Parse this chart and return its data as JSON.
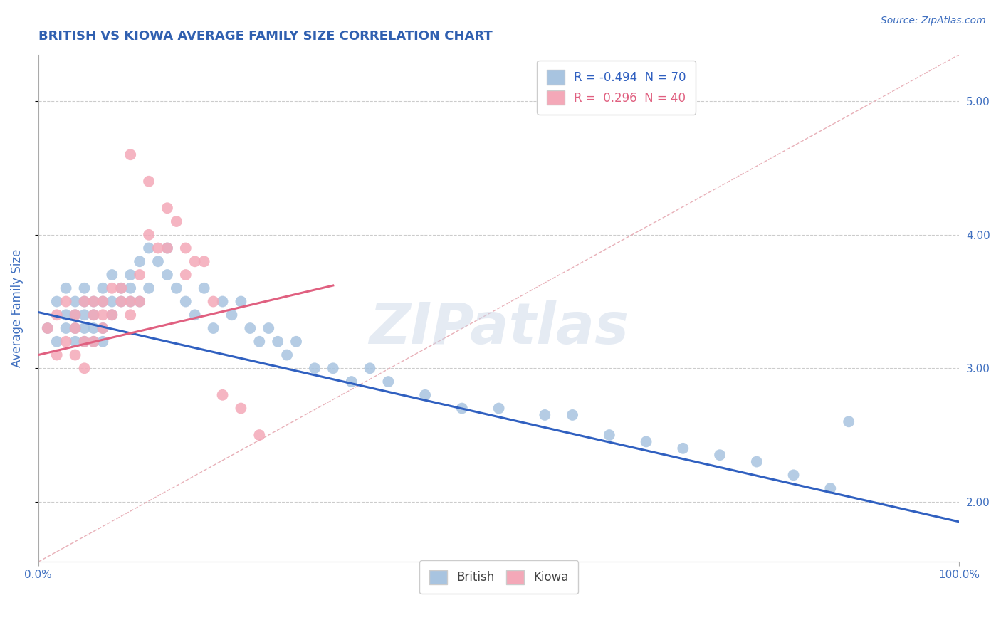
{
  "title": "BRITISH VS KIOWA AVERAGE FAMILY SIZE CORRELATION CHART",
  "source_text": "Source: ZipAtlas.com",
  "ylabel": "Average Family Size",
  "xlim": [
    0.0,
    1.0
  ],
  "ylim": [
    1.55,
    5.35
  ],
  "yticks": [
    2.0,
    3.0,
    4.0,
    5.0
  ],
  "xticks": [
    0.0,
    1.0
  ],
  "xticklabels": [
    "0.0%",
    "100.0%"
  ],
  "yticklabels_right": [
    "2.00",
    "3.00",
    "4.00",
    "5.00"
  ],
  "british_R": -0.494,
  "british_N": 70,
  "kiowa_R": 0.296,
  "kiowa_N": 40,
  "british_color": "#a8c4e0",
  "kiowa_color": "#f4a8b8",
  "british_line_color": "#3060c0",
  "kiowa_line_color": "#e06080",
  "diagonal_color": "#c8c8c8",
  "background_color": "#ffffff",
  "grid_color": "#cccccc",
  "title_color": "#3060b0",
  "label_color": "#4070c0",
  "source_color": "#4070c0",
  "watermark": "ZIPatlas",
  "british_line_x0": 0.0,
  "british_line_y0": 3.42,
  "british_line_x1": 1.0,
  "british_line_y1": 1.85,
  "kiowa_line_x0": 0.0,
  "kiowa_line_y0": 3.1,
  "kiowa_line_x1": 0.32,
  "kiowa_line_y1": 3.62,
  "british_x": [
    0.01,
    0.02,
    0.02,
    0.03,
    0.03,
    0.03,
    0.04,
    0.04,
    0.04,
    0.04,
    0.05,
    0.05,
    0.05,
    0.05,
    0.05,
    0.06,
    0.06,
    0.06,
    0.06,
    0.07,
    0.07,
    0.07,
    0.07,
    0.08,
    0.08,
    0.08,
    0.09,
    0.09,
    0.1,
    0.1,
    0.1,
    0.11,
    0.11,
    0.12,
    0.12,
    0.13,
    0.14,
    0.14,
    0.15,
    0.16,
    0.17,
    0.18,
    0.19,
    0.2,
    0.21,
    0.22,
    0.23,
    0.24,
    0.25,
    0.26,
    0.27,
    0.28,
    0.3,
    0.32,
    0.34,
    0.36,
    0.38,
    0.42,
    0.46,
    0.5,
    0.55,
    0.58,
    0.62,
    0.66,
    0.7,
    0.74,
    0.78,
    0.82,
    0.86,
    0.88
  ],
  "british_y": [
    3.3,
    3.5,
    3.2,
    3.4,
    3.6,
    3.3,
    3.5,
    3.2,
    3.4,
    3.3,
    3.6,
    3.3,
    3.5,
    3.2,
    3.4,
    3.5,
    3.3,
    3.2,
    3.4,
    3.5,
    3.6,
    3.3,
    3.2,
    3.7,
    3.4,
    3.5,
    3.5,
    3.6,
    3.7,
    3.5,
    3.6,
    3.8,
    3.5,
    3.9,
    3.6,
    3.8,
    3.9,
    3.7,
    3.6,
    3.5,
    3.4,
    3.6,
    3.3,
    3.5,
    3.4,
    3.5,
    3.3,
    3.2,
    3.3,
    3.2,
    3.1,
    3.2,
    3.0,
    3.0,
    2.9,
    3.0,
    2.9,
    2.8,
    2.7,
    2.7,
    2.65,
    2.65,
    2.5,
    2.45,
    2.4,
    2.35,
    2.3,
    2.2,
    2.1,
    2.6
  ],
  "kiowa_x": [
    0.01,
    0.02,
    0.02,
    0.03,
    0.03,
    0.04,
    0.04,
    0.04,
    0.05,
    0.05,
    0.05,
    0.06,
    0.06,
    0.06,
    0.07,
    0.07,
    0.07,
    0.08,
    0.08,
    0.09,
    0.09,
    0.1,
    0.1,
    0.11,
    0.11,
    0.12,
    0.13,
    0.14,
    0.15,
    0.16,
    0.17,
    0.18,
    0.19,
    0.2,
    0.22,
    0.24,
    0.1,
    0.12,
    0.14,
    0.16
  ],
  "kiowa_y": [
    3.3,
    3.1,
    3.4,
    3.2,
    3.5,
    3.3,
    3.1,
    3.4,
    3.2,
    3.5,
    3.0,
    3.4,
    3.2,
    3.5,
    3.3,
    3.5,
    3.4,
    3.6,
    3.4,
    3.5,
    3.6,
    3.5,
    3.4,
    3.7,
    3.5,
    4.0,
    3.9,
    3.9,
    4.1,
    3.7,
    3.8,
    3.8,
    3.5,
    2.8,
    2.7,
    2.5,
    4.6,
    4.4,
    4.2,
    3.9
  ]
}
